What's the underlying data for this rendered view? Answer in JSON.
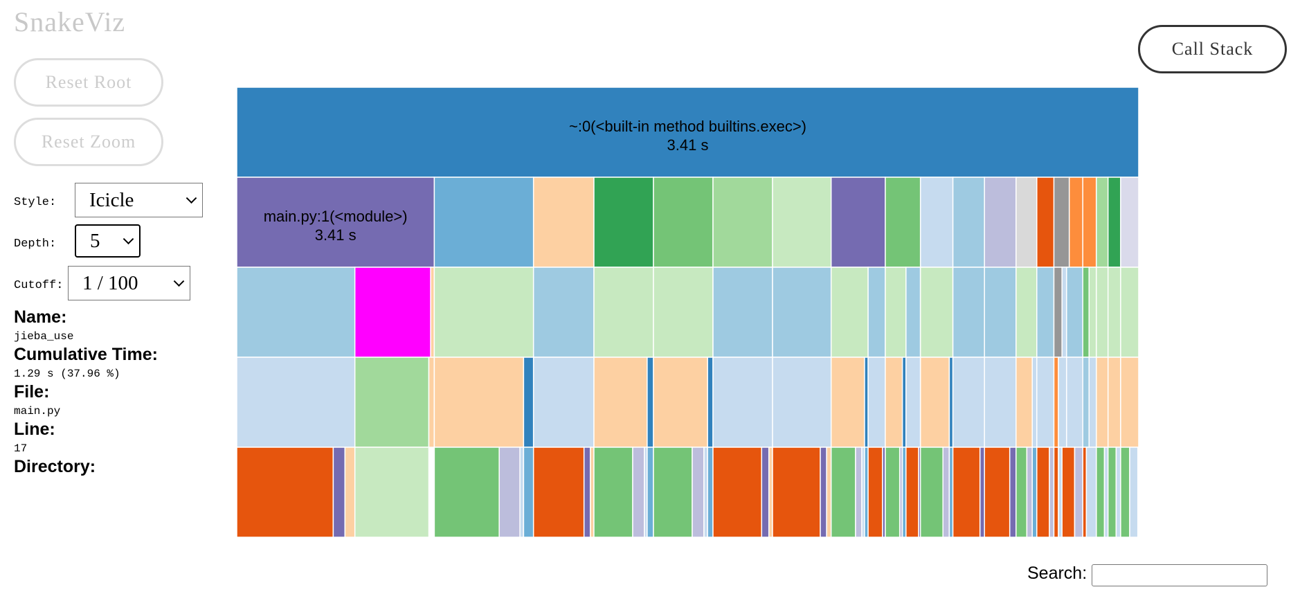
{
  "app": {
    "title": "SnakeViz"
  },
  "buttons": {
    "reset_root": "Reset Root",
    "reset_zoom": "Reset Zoom",
    "call_stack": "Call Stack"
  },
  "controls": {
    "style": {
      "label": "Style:",
      "value": "Icicle"
    },
    "depth": {
      "label": "Depth:",
      "value": "5"
    },
    "cutoff": {
      "label": "Cutoff:",
      "value": "1 / 100"
    }
  },
  "info": {
    "name_label": "Name:",
    "name": "jieba_use",
    "cumtime_label": "Cumulative Time:",
    "cumtime": "1.29 s (37.96 %)",
    "file_label": "File:",
    "file": "main.py",
    "line_label": "Line:",
    "line": "17",
    "dir_label": "Directory:",
    "dir": ""
  },
  "search": {
    "label": "Search:",
    "placeholder": ""
  },
  "colors": {
    "blue": "#3182bd",
    "purple": "#756bb1",
    "lightblue1": "#6baed6",
    "lightblue2": "#9ecae1",
    "lightblue3": "#c6dbef",
    "peach": "#fdd0a2",
    "green": "#31a354",
    "green2": "#74c476",
    "green3": "#a1d99b",
    "green4": "#c7e9c0",
    "lavender": "#bcbddc",
    "lavender2": "#dadaeb",
    "grey": "#969696",
    "grey2": "#d9d9d9",
    "orange": "#e6550d",
    "orange2": "#fd8d3c",
    "magenta": "#ff00ff"
  },
  "chart_data": {
    "type": "icicle",
    "total_seconds": 3.41,
    "labels": {
      "root_name": "~:0(<built-in method builtins.exec>)",
      "root_time": "3.41 s",
      "main_name": "main.py:1(<module>)",
      "main_time": "3.41 s"
    },
    "levels": [
      [
        [
          0,
          1,
          "#3182bd"
        ]
      ],
      [
        [
          0,
          0.219,
          "#756bb1"
        ],
        [
          0.219,
          0.329,
          "#6baed6"
        ],
        [
          0.329,
          0.396,
          "#fdd0a2"
        ],
        [
          0.396,
          0.462,
          "#31a354"
        ],
        [
          0.462,
          0.528,
          "#74c476"
        ],
        [
          0.528,
          0.594,
          "#a1d99b"
        ],
        [
          0.594,
          0.659,
          "#c7e9c0"
        ],
        [
          0.659,
          0.719,
          "#756bb1"
        ],
        [
          0.719,
          0.758,
          "#74c476"
        ],
        [
          0.758,
          0.794,
          "#c6dbef"
        ],
        [
          0.794,
          0.829,
          "#9ecae1"
        ],
        [
          0.829,
          0.864,
          "#bcbddc"
        ],
        [
          0.864,
          0.887,
          "#d9d9d9"
        ],
        [
          0.887,
          0.906,
          "#e6550d"
        ],
        [
          0.906,
          0.923,
          "#969696"
        ],
        [
          0.923,
          0.938,
          "#fd8d3c"
        ],
        [
          0.938,
          0.953,
          "#fd8d3c"
        ],
        [
          0.953,
          0.966,
          "#a1d99b"
        ],
        [
          0.966,
          0.98,
          "#31a354"
        ],
        [
          0.98,
          1,
          "#dadaeb"
        ]
      ],
      [
        [
          0,
          0.131,
          "#9ecae1"
        ],
        [
          0.131,
          0.215,
          "#ff00ff"
        ],
        [
          0.215,
          0.219,
          "#fdd0a2"
        ],
        [
          0.219,
          0.329,
          "#c7e9c0"
        ],
        [
          0.329,
          0.396,
          "#9ecae1"
        ],
        [
          0.396,
          0.462,
          "#c7e9c0"
        ],
        [
          0.462,
          0.528,
          "#c7e9c0"
        ],
        [
          0.528,
          0.594,
          "#9ecae1"
        ],
        [
          0.594,
          0.659,
          "#9ecae1"
        ],
        [
          0.659,
          0.7,
          "#c7e9c0"
        ],
        [
          0.7,
          0.719,
          "#9ecae1"
        ],
        [
          0.719,
          0.742,
          "#c7e9c0"
        ],
        [
          0.742,
          0.758,
          "#9ecae1"
        ],
        [
          0.758,
          0.794,
          "#c7e9c0"
        ],
        [
          0.794,
          0.829,
          "#9ecae1"
        ],
        [
          0.829,
          0.864,
          "#9ecae1"
        ],
        [
          0.864,
          0.887,
          "#c7e9c0"
        ],
        [
          0.887,
          0.906,
          "#9ecae1"
        ],
        [
          0.906,
          0.915,
          "#969696"
        ],
        [
          0.915,
          0.92,
          "#c6dbef"
        ],
        [
          0.92,
          0.938,
          "#9ecae1"
        ],
        [
          0.938,
          0.945,
          "#74c476"
        ],
        [
          0.945,
          0.953,
          "#c7e9c0"
        ],
        [
          0.953,
          0.966,
          "#c7e9c0"
        ],
        [
          0.966,
          0.98,
          "#c7e9c0"
        ],
        [
          0.98,
          1,
          "#c7e9c0"
        ]
      ],
      [
        [
          0,
          0.131,
          "#c6dbef"
        ],
        [
          0.131,
          0.213,
          "#a1d99b"
        ],
        [
          0.213,
          0.219,
          "#fdd0a2"
        ],
        [
          0.219,
          0.318,
          "#fdd0a2"
        ],
        [
          0.318,
          0.329,
          "#3182bd"
        ],
        [
          0.329,
          0.396,
          "#c6dbef"
        ],
        [
          0.396,
          0.455,
          "#fdd0a2"
        ],
        [
          0.455,
          0.462,
          "#3182bd"
        ],
        [
          0.462,
          0.522,
          "#fdd0a2"
        ],
        [
          0.522,
          0.528,
          "#3182bd"
        ],
        [
          0.528,
          0.594,
          "#c6dbef"
        ],
        [
          0.594,
          0.659,
          "#c6dbef"
        ],
        [
          0.659,
          0.696,
          "#fdd0a2"
        ],
        [
          0.696,
          0.7,
          "#3182bd"
        ],
        [
          0.7,
          0.719,
          "#c6dbef"
        ],
        [
          0.719,
          0.738,
          "#fdd0a2"
        ],
        [
          0.738,
          0.742,
          "#3182bd"
        ],
        [
          0.742,
          0.758,
          "#c6dbef"
        ],
        [
          0.758,
          0.79,
          "#fdd0a2"
        ],
        [
          0.79,
          0.794,
          "#3182bd"
        ],
        [
          0.794,
          0.829,
          "#c6dbef"
        ],
        [
          0.829,
          0.864,
          "#c6dbef"
        ],
        [
          0.864,
          0.882,
          "#fdd0a2"
        ],
        [
          0.882,
          0.887,
          "#c6dbef"
        ],
        [
          0.887,
          0.906,
          "#c6dbef"
        ],
        [
          0.906,
          0.911,
          "#fd8d3c"
        ],
        [
          0.911,
          0.92,
          "#c6dbef"
        ],
        [
          0.92,
          0.938,
          "#c6dbef"
        ],
        [
          0.938,
          0.945,
          "#9ecae1"
        ],
        [
          0.945,
          0.953,
          "#c6dbef"
        ],
        [
          0.953,
          0.966,
          "#fdd0a2"
        ],
        [
          0.966,
          0.98,
          "#fdd0a2"
        ],
        [
          0.98,
          1,
          "#fdd0a2"
        ]
      ],
      [
        [
          0,
          0.107,
          "#e6550d"
        ],
        [
          0.107,
          0.12,
          "#756bb1"
        ],
        [
          0.12,
          0.131,
          "#fdd0a2"
        ],
        [
          0.131,
          0.213,
          "#c7e9c0"
        ],
        [
          0.219,
          0.291,
          "#74c476"
        ],
        [
          0.291,
          0.314,
          "#bcbddc"
        ],
        [
          0.314,
          0.318,
          "#c6dbef"
        ],
        [
          0.318,
          0.329,
          "#6baed6"
        ],
        [
          0.329,
          0.385,
          "#e6550d"
        ],
        [
          0.385,
          0.392,
          "#756bb1"
        ],
        [
          0.392,
          0.396,
          "#fdd0a2"
        ],
        [
          0.396,
          0.439,
          "#74c476"
        ],
        [
          0.439,
          0.452,
          "#bcbddc"
        ],
        [
          0.452,
          0.455,
          "#c6dbef"
        ],
        [
          0.455,
          0.462,
          "#6baed6"
        ],
        [
          0.462,
          0.505,
          "#74c476"
        ],
        [
          0.505,
          0.518,
          "#bcbddc"
        ],
        [
          0.518,
          0.522,
          "#c6dbef"
        ],
        [
          0.522,
          0.528,
          "#6baed6"
        ],
        [
          0.528,
          0.582,
          "#e6550d"
        ],
        [
          0.582,
          0.59,
          "#756bb1"
        ],
        [
          0.59,
          0.594,
          "#fdd0a2"
        ],
        [
          0.594,
          0.647,
          "#e6550d"
        ],
        [
          0.647,
          0.654,
          "#756bb1"
        ],
        [
          0.654,
          0.659,
          "#fdd0a2"
        ],
        [
          0.659,
          0.686,
          "#74c476"
        ],
        [
          0.686,
          0.693,
          "#bcbddc"
        ],
        [
          0.693,
          0.696,
          "#c6dbef"
        ],
        [
          0.696,
          0.7,
          "#6baed6"
        ],
        [
          0.7,
          0.716,
          "#e6550d"
        ],
        [
          0.716,
          0.719,
          "#756bb1"
        ],
        [
          0.719,
          0.735,
          "#74c476"
        ],
        [
          0.735,
          0.738,
          "#bcbddc"
        ],
        [
          0.738,
          0.742,
          "#6baed6"
        ],
        [
          0.742,
          0.756,
          "#e6550d"
        ],
        [
          0.756,
          0.758,
          "#756bb1"
        ],
        [
          0.758,
          0.783,
          "#74c476"
        ],
        [
          0.783,
          0.79,
          "#bcbddc"
        ],
        [
          0.79,
          0.794,
          "#6baed6"
        ],
        [
          0.794,
          0.824,
          "#e6550d"
        ],
        [
          0.824,
          0.829,
          "#756bb1"
        ],
        [
          0.829,
          0.857,
          "#e6550d"
        ],
        [
          0.857,
          0.864,
          "#756bb1"
        ],
        [
          0.864,
          0.876,
          "#74c476"
        ],
        [
          0.876,
          0.882,
          "#bcbddc"
        ],
        [
          0.882,
          0.887,
          "#6baed6"
        ],
        [
          0.887,
          0.901,
          "#e6550d"
        ],
        [
          0.901,
          0.906,
          "#bcbddc"
        ],
        [
          0.906,
          0.911,
          "#e6550d"
        ],
        [
          0.911,
          0.915,
          "#c6dbef"
        ],
        [
          0.915,
          0.929,
          "#e6550d"
        ],
        [
          0.929,
          0.938,
          "#bcbddc"
        ],
        [
          0.938,
          0.942,
          "#e6550d"
        ],
        [
          0.942,
          0.953,
          "#c6dbef"
        ],
        [
          0.953,
          0.962,
          "#74c476"
        ],
        [
          0.962,
          0.966,
          "#c6dbef"
        ],
        [
          0.966,
          0.975,
          "#74c476"
        ],
        [
          0.975,
          0.98,
          "#c6dbef"
        ],
        [
          0.98,
          0.99,
          "#74c476"
        ],
        [
          0.99,
          0.999,
          "#c6dbef"
        ]
      ]
    ]
  }
}
